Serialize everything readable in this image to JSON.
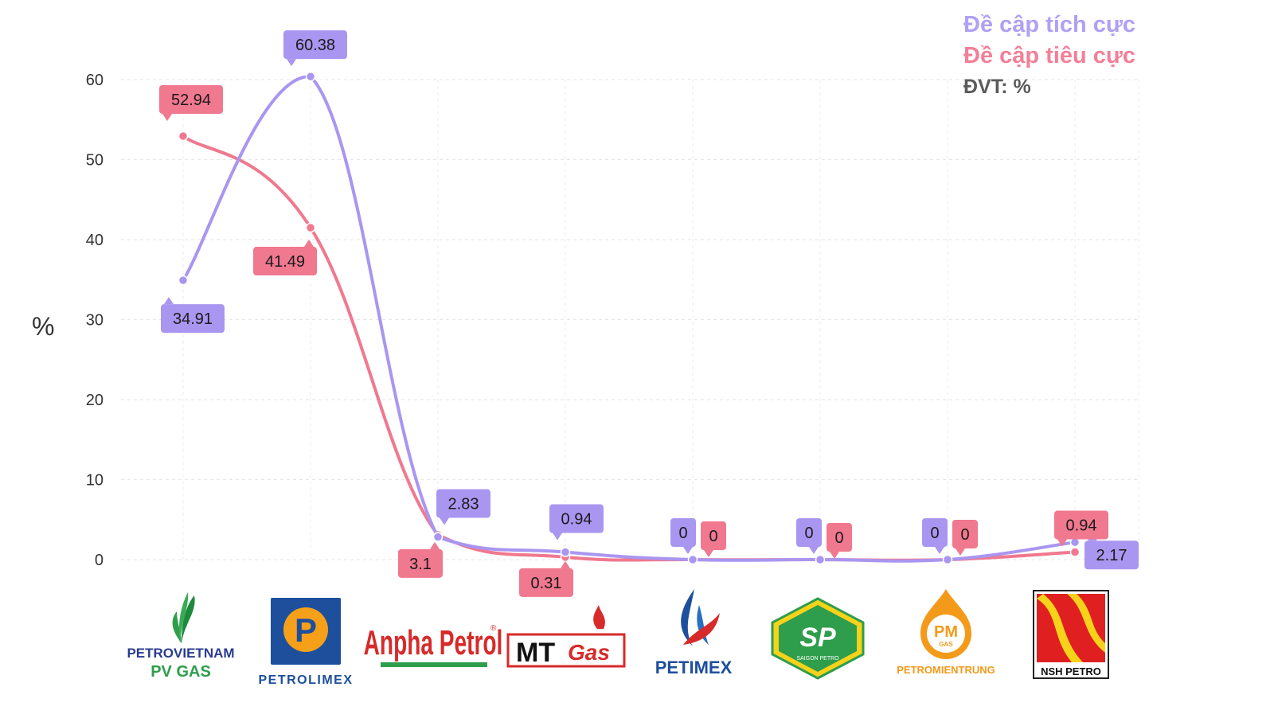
{
  "chart_data": {
    "type": "line",
    "categories": [
      "PV GAS",
      "PETROLIMEX",
      "Anpha Petrol",
      "MTGas",
      "PETIMEX",
      "SAIGON PETRO",
      "PETROMIENTRUNG",
      "NSH PETRO"
    ],
    "series": [
      {
        "name": "Đề cập tích cực",
        "color": "#a996f0",
        "values": [
          34.91,
          60.38,
          2.83,
          0.94,
          0,
          0,
          0,
          2.17
        ]
      },
      {
        "name": "Đề cập tiêu cực",
        "color": "#f0788f",
        "values": [
          52.94,
          41.49,
          3.1,
          0.31,
          0,
          0,
          0,
          0.94
        ]
      }
    ],
    "unit_note": "ĐVT: %",
    "ylabel": "%",
    "ylim": [
      0,
      60
    ],
    "yticks": [
      0,
      10,
      20,
      30,
      40,
      50,
      60
    ],
    "grid": true,
    "legend_position": "top-right"
  },
  "logos": {
    "pvgas": {
      "line1": "PETROVIETNAM",
      "line2": "PV GAS"
    },
    "petrolimex": {
      "text": "PETROLIMEX",
      "mark": "P"
    },
    "anpha": {
      "text": "Anpha Petrol",
      "reg": "®"
    },
    "mtgas": {
      "text1": "MT",
      "text2": "Gas"
    },
    "petimex": {
      "text": "PETIMEX"
    },
    "saigonpetro": {
      "mark": "SP",
      "text": "SAIGON PETRO"
    },
    "pmgas": {
      "mark": "PM",
      "sub": "GAS",
      "text": "PETROMIENTRUNG"
    },
    "nsh": {
      "text": "NSH PETRO"
    }
  }
}
